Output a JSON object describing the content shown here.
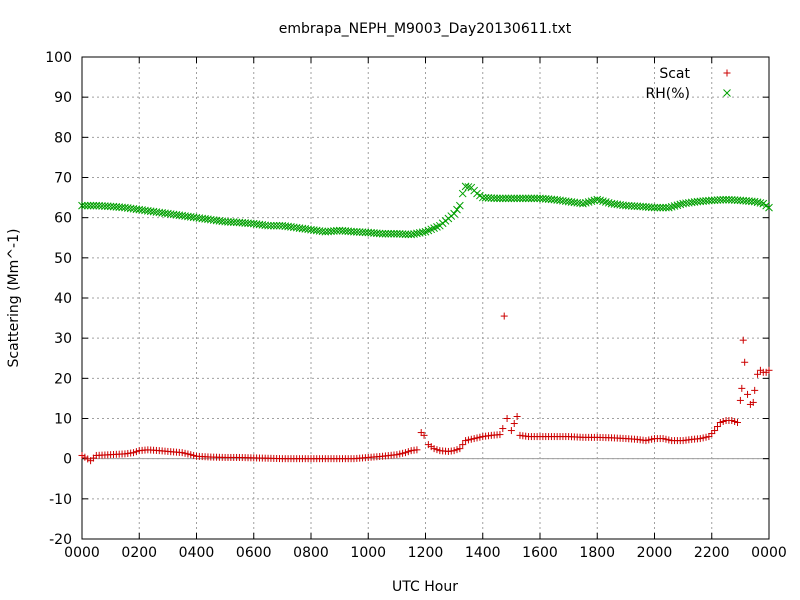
{
  "chart_data": {
    "type": "scatter",
    "title": "embrapa_NEPH_M9003_Day20130611.txt",
    "xlabel": "UTC Hour",
    "ylabel": "Scattering (Mm^-1)",
    "xlim": [
      0,
      2400
    ],
    "ylim": [
      -20,
      100
    ],
    "x_ticks": [
      "0000",
      "0200",
      "0400",
      "0600",
      "0800",
      "1000",
      "1200",
      "1400",
      "1600",
      "1800",
      "2000",
      "2200",
      "0000"
    ],
    "x_tick_values": [
      0,
      200,
      400,
      600,
      800,
      1000,
      1200,
      1400,
      1600,
      1800,
      2000,
      2200,
      2400
    ],
    "y_ticks": [
      "-20",
      "-10",
      "0",
      "10",
      "20",
      "30",
      "40",
      "50",
      "60",
      "70",
      "80",
      "90",
      "100"
    ],
    "y_tick_values": [
      -20,
      -10,
      0,
      10,
      20,
      30,
      40,
      50,
      60,
      70,
      80,
      90,
      100
    ],
    "grid": true,
    "zero_line": true,
    "legend_position": "top-right",
    "series": [
      {
        "name": "Scat",
        "marker": "+",
        "color": "#cc0000",
        "points": [
          [
            0,
            0.8
          ],
          [
            30,
            -0.5
          ],
          [
            50,
            0.8
          ],
          [
            100,
            1.0
          ],
          [
            150,
            1.2
          ],
          [
            180,
            1.5
          ],
          [
            200,
            2.0
          ],
          [
            230,
            2.2
          ],
          [
            270,
            2.0
          ],
          [
            300,
            1.8
          ],
          [
            350,
            1.5
          ],
          [
            380,
            1.0
          ],
          [
            400,
            0.6
          ],
          [
            450,
            0.4
          ],
          [
            500,
            0.3
          ],
          [
            550,
            0.3
          ],
          [
            600,
            0.2
          ],
          [
            650,
            0.1
          ],
          [
            700,
            0.0
          ],
          [
            750,
            0.0
          ],
          [
            800,
            0.0
          ],
          [
            850,
            0.0
          ],
          [
            900,
            0.0
          ],
          [
            950,
            0.0
          ],
          [
            1000,
            0.3
          ],
          [
            1050,
            0.6
          ],
          [
            1100,
            1.0
          ],
          [
            1130,
            1.5
          ],
          [
            1150,
            2.0
          ],
          [
            1170,
            2.2
          ],
          [
            1185,
            6.5
          ],
          [
            1195,
            5.8
          ],
          [
            1210,
            3.5
          ],
          [
            1230,
            2.5
          ],
          [
            1250,
            2.0
          ],
          [
            1280,
            1.8
          ],
          [
            1300,
            2.0
          ],
          [
            1320,
            2.5
          ],
          [
            1340,
            4.5
          ],
          [
            1370,
            5.0
          ],
          [
            1400,
            5.5
          ],
          [
            1430,
            5.8
          ],
          [
            1460,
            6.0
          ],
          [
            1470,
            7.5
          ],
          [
            1475,
            35.5
          ],
          [
            1485,
            10.0
          ],
          [
            1500,
            7.0
          ],
          [
            1520,
            10.5
          ],
          [
            1530,
            5.8
          ],
          [
            1560,
            5.5
          ],
          [
            1600,
            5.5
          ],
          [
            1650,
            5.5
          ],
          [
            1700,
            5.5
          ],
          [
            1750,
            5.3
          ],
          [
            1800,
            5.3
          ],
          [
            1850,
            5.2
          ],
          [
            1900,
            5.0
          ],
          [
            1940,
            4.8
          ],
          [
            1970,
            4.5
          ],
          [
            2000,
            5.0
          ],
          [
            2030,
            5.0
          ],
          [
            2060,
            4.5
          ],
          [
            2100,
            4.5
          ],
          [
            2130,
            4.8
          ],
          [
            2160,
            5.0
          ],
          [
            2190,
            5.5
          ],
          [
            2210,
            7.0
          ],
          [
            2230,
            9.0
          ],
          [
            2250,
            9.5
          ],
          [
            2270,
            9.5
          ],
          [
            2290,
            9.0
          ],
          [
            2300,
            14.5
          ],
          [
            2305,
            17.5
          ],
          [
            2310,
            29.5
          ],
          [
            2315,
            24.0
          ],
          [
            2325,
            16.0
          ],
          [
            2335,
            13.5
          ],
          [
            2345,
            14.0
          ],
          [
            2350,
            17.0
          ],
          [
            2360,
            21.0
          ],
          [
            2370,
            22.0
          ],
          [
            2380,
            21.5
          ],
          [
            2390,
            21.5
          ],
          [
            2400,
            22.0
          ]
        ]
      },
      {
        "name": "RH(%)",
        "marker": "x",
        "color": "#00a000",
        "points": [
          [
            0,
            63.0
          ],
          [
            50,
            63.0
          ],
          [
            100,
            62.8
          ],
          [
            150,
            62.5
          ],
          [
            200,
            62.0
          ],
          [
            250,
            61.5
          ],
          [
            300,
            61.0
          ],
          [
            350,
            60.5
          ],
          [
            400,
            60.0
          ],
          [
            450,
            59.5
          ],
          [
            500,
            59.0
          ],
          [
            550,
            58.8
          ],
          [
            600,
            58.5
          ],
          [
            650,
            58.0
          ],
          [
            700,
            58.0
          ],
          [
            750,
            57.5
          ],
          [
            800,
            57.0
          ],
          [
            850,
            56.5
          ],
          [
            900,
            56.8
          ],
          [
            950,
            56.5
          ],
          [
            1000,
            56.3
          ],
          [
            1050,
            56.0
          ],
          [
            1100,
            56.0
          ],
          [
            1150,
            55.8
          ],
          [
            1200,
            56.5
          ],
          [
            1250,
            58.0
          ],
          [
            1300,
            61.0
          ],
          [
            1320,
            63.0
          ],
          [
            1330,
            66.0
          ],
          [
            1340,
            67.8
          ],
          [
            1360,
            67.5
          ],
          [
            1380,
            66.0
          ],
          [
            1400,
            65.0
          ],
          [
            1450,
            64.8
          ],
          [
            1500,
            64.8
          ],
          [
            1550,
            64.8
          ],
          [
            1600,
            64.8
          ],
          [
            1650,
            64.5
          ],
          [
            1700,
            64.0
          ],
          [
            1750,
            63.5
          ],
          [
            1800,
            64.5
          ],
          [
            1850,
            63.5
          ],
          [
            1900,
            63.0
          ],
          [
            1950,
            62.8
          ],
          [
            2000,
            62.5
          ],
          [
            2050,
            62.5
          ],
          [
            2100,
            63.5
          ],
          [
            2150,
            64.0
          ],
          [
            2200,
            64.3
          ],
          [
            2250,
            64.5
          ],
          [
            2300,
            64.3
          ],
          [
            2350,
            64.0
          ],
          [
            2380,
            63.5
          ],
          [
            2400,
            62.5
          ]
        ]
      }
    ]
  }
}
